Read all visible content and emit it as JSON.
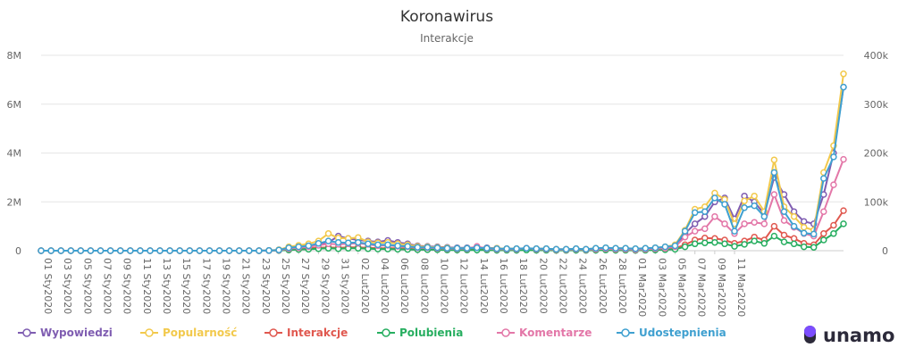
{
  "colors": {
    "Wypowiedzi": "#7f5db1",
    "Popularność": "#f2c94c",
    "Interakcje": "#e0584f",
    "Polubienia": "#27ae60",
    "Komentarze": "#e377a8",
    "Udostepnienia": "#3fa0d0",
    "logo": "#2c2a3a",
    "logo_accent": "#7c4dff"
  },
  "brand": {
    "name": "unamo"
  },
  "chart_data": {
    "type": "line",
    "title": "Koronawirus",
    "subtitle": "Interakcje",
    "xlabel": "",
    "ylabel": "",
    "y_left": {
      "ticks": [
        "0",
        "2M",
        "4M",
        "6M",
        "8M"
      ],
      "min": 0,
      "max": 8000000
    },
    "y_right": {
      "ticks": [
        "0",
        "100k",
        "200k",
        "300k",
        "400k"
      ],
      "min": 0,
      "max": 400000
    },
    "grid": true,
    "legend": "bottom",
    "x_tick_labels": [
      "01 Sty2020",
      "03 Sty2020",
      "05 Sty2020",
      "07 Sty2020",
      "09 Sty2020",
      "11 Sty2020",
      "13 Sty2020",
      "15 Sty2020",
      "17 Sty2020",
      "19 Sty2020",
      "21 Sty2020",
      "23 Sty2020",
      "25 Sty2020",
      "27 Sty2020",
      "29 Sty2020",
      "31 Sty2020",
      "02 Lut2020",
      "04 Lut2020",
      "06 Lut2020",
      "08 Lut2020",
      "10 Lut2020",
      "12 Lut2020",
      "14 Lut2020",
      "16 Lut2020",
      "18 Lut2020",
      "20 Lut2020",
      "22 Lut2020",
      "24 Lut2020",
      "26 Lut2020",
      "28 Lut2020",
      "01 Mar2020",
      "03 Mar2020",
      "05 Mar2020",
      "07 Mar2020",
      "09 Mar2020",
      "11 Mar2020"
    ],
    "series": [
      {
        "name": "Wypowiedzi",
        "axis": "right",
        "values": [
          0,
          0,
          0,
          0,
          0,
          0,
          0,
          0,
          0,
          0,
          0,
          0,
          0,
          0,
          0,
          0,
          0,
          0,
          0,
          0,
          0,
          0,
          0,
          0.3,
          1.5,
          6,
          8,
          9,
          13,
          17,
          30,
          25,
          22,
          20,
          18,
          21,
          17,
          14,
          10,
          9,
          8,
          7,
          6,
          6,
          7,
          6,
          5,
          4,
          4,
          5,
          4,
          4,
          3,
          3,
          4,
          3,
          4,
          5,
          4,
          4,
          3,
          4,
          5,
          6,
          7,
          35,
          55,
          70,
          100,
          108,
          65,
          112,
          100,
          75,
          150,
          115,
          80,
          60,
          55,
          115,
          200,
          335
        ]
      },
      {
        "name": "Popularność",
        "axis": "right",
        "values": [
          0,
          0,
          0,
          0,
          0,
          0,
          0,
          0,
          0,
          0,
          0,
          0,
          0,
          0,
          0,
          0,
          0,
          0,
          0,
          0,
          0,
          0,
          0,
          0.5,
          2,
          8,
          11,
          14,
          20,
          35,
          26,
          25,
          27,
          18,
          16,
          17,
          14,
          12,
          9,
          8,
          7,
          6,
          5,
          5,
          6,
          5,
          5,
          4,
          4,
          5,
          4,
          4,
          3,
          3,
          4,
          3,
          5,
          6,
          5,
          5,
          4,
          5,
          6,
          8,
          12,
          42,
          85,
          90,
          118,
          105,
          55,
          102,
          112,
          80,
          186,
          90,
          70,
          48,
          42,
          160,
          215,
          362
        ]
      },
      {
        "name": "Interakcje",
        "axis": "right",
        "values": [
          0,
          0,
          0,
          0,
          0,
          0,
          0,
          0,
          0,
          0,
          0,
          0,
          0,
          0,
          0,
          0,
          0,
          0,
          0,
          0,
          0,
          0,
          0,
          0.2,
          0.8,
          2.5,
          4,
          5,
          6,
          7,
          6,
          7,
          7,
          6,
          5,
          5,
          5,
          4,
          3,
          3,
          3,
          2.5,
          2,
          2,
          2.5,
          2,
          2,
          1.5,
          1.5,
          2,
          1.5,
          1.5,
          1,
          1,
          1.5,
          1,
          1.5,
          2,
          1.5,
          1.5,
          1,
          1.5,
          2,
          3,
          5,
          12,
          22,
          26,
          25,
          22,
          15,
          20,
          28,
          22,
          50,
          32,
          25,
          15,
          12,
          35,
          52,
          82
        ]
      },
      {
        "name": "Polubienia",
        "axis": "right",
        "values": [
          0,
          0,
          0,
          0,
          0,
          0,
          0,
          0,
          0,
          0,
          0,
          0,
          0,
          0,
          0,
          0,
          0,
          0,
          0,
          0,
          0,
          0,
          0,
          0.1,
          0.5,
          1.5,
          2.5,
          3,
          4,
          5,
          4,
          5,
          5,
          4,
          3.5,
          3.5,
          3,
          2.5,
          2,
          2,
          2,
          1.5,
          1.5,
          1.5,
          1.5,
          1.5,
          1,
          1,
          1,
          1.5,
          1,
          1,
          0.8,
          0.8,
          1,
          0.8,
          1,
          1.5,
          1,
          1,
          0.8,
          1,
          1.5,
          2,
          3,
          8,
          14,
          16,
          17,
          14,
          9,
          13,
          20,
          15,
          30,
          18,
          14,
          8,
          7,
          22,
          35,
          55
        ]
      },
      {
        "name": "Komentarze",
        "axis": "right",
        "values": [
          0,
          0,
          0,
          0,
          0,
          0,
          0,
          0,
          0,
          0,
          0,
          0,
          0,
          0,
          0,
          0,
          0,
          0,
          0,
          0,
          0,
          0,
          0,
          0.2,
          1,
          4,
          6,
          8,
          11,
          14,
          13,
          14,
          15,
          13,
          10,
          11,
          9,
          8,
          6,
          6,
          5,
          4,
          4,
          4,
          9,
          4,
          3,
          3,
          3,
          5,
          3,
          3,
          2,
          2,
          3,
          2,
          3,
          4,
          3,
          3,
          2,
          3,
          4,
          5,
          8,
          28,
          40,
          45,
          70,
          55,
          35,
          55,
          58,
          55,
          115,
          62,
          48,
          35,
          30,
          80,
          135,
          187
        ]
      },
      {
        "name": "Udostepnienia",
        "axis": "right",
        "values": [
          0,
          0,
          0,
          0,
          0,
          0,
          0,
          0,
          0,
          0,
          0,
          0,
          0,
          0,
          0,
          0,
          0,
          0,
          0,
          0,
          0,
          0,
          0,
          0.3,
          1.5,
          6,
          8,
          10,
          15,
          20,
          17,
          16,
          17,
          14,
          12,
          12,
          10,
          9,
          7,
          7,
          6,
          5,
          5,
          5,
          6,
          5,
          4,
          4,
          4,
          5,
          4,
          4,
          3,
          3,
          4,
          3,
          5,
          6,
          5,
          5,
          4,
          5,
          6,
          8,
          10,
          40,
          78,
          80,
          108,
          95,
          40,
          88,
          92,
          70,
          160,
          80,
          50,
          36,
          34,
          148,
          192,
          335
        ]
      }
    ]
  }
}
